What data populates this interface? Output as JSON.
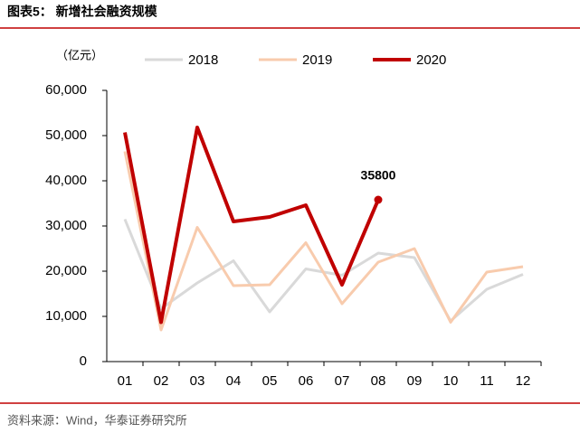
{
  "header": {
    "title": "图表5：  新增社会融资规模"
  },
  "chart_data": {
    "type": "line",
    "y_label": "（亿元）",
    "categories": [
      "01",
      "02",
      "03",
      "04",
      "05",
      "06",
      "07",
      "08",
      "09",
      "10",
      "11",
      "12"
    ],
    "series": [
      {
        "name": "2018",
        "color": "#d9d9d9",
        "values": [
          31500,
          11700,
          17400,
          22300,
          11000,
          20500,
          19100,
          24000,
          23000,
          9000,
          16000,
          19300
        ]
      },
      {
        "name": "2019",
        "color": "#f8cbad",
        "values": [
          46500,
          7000,
          29700,
          16800,
          17000,
          26300,
          12800,
          22000,
          25000,
          8700,
          19800,
          21000
        ]
      },
      {
        "name": "2020",
        "color": "#c00000",
        "values": [
          50700,
          8700,
          51800,
          31000,
          32000,
          34600,
          17000,
          35800,
          null,
          null,
          null,
          null
        ]
      }
    ],
    "ylim": [
      0,
      60000
    ],
    "yticks": [
      0,
      {
        "value": 10000,
        "label": "10,000"
      },
      {
        "value": 20000,
        "label": "20,000"
      },
      {
        "value": 30000,
        "label": "30,000"
      },
      {
        "value": 40000,
        "label": "40,000"
      },
      {
        "value": 50000,
        "label": "50,000"
      },
      {
        "value": 60000,
        "label": "60,000"
      }
    ],
    "grid": false
  },
  "footer": {
    "source": "资料来源：Wind，华泰证券研究所"
  }
}
